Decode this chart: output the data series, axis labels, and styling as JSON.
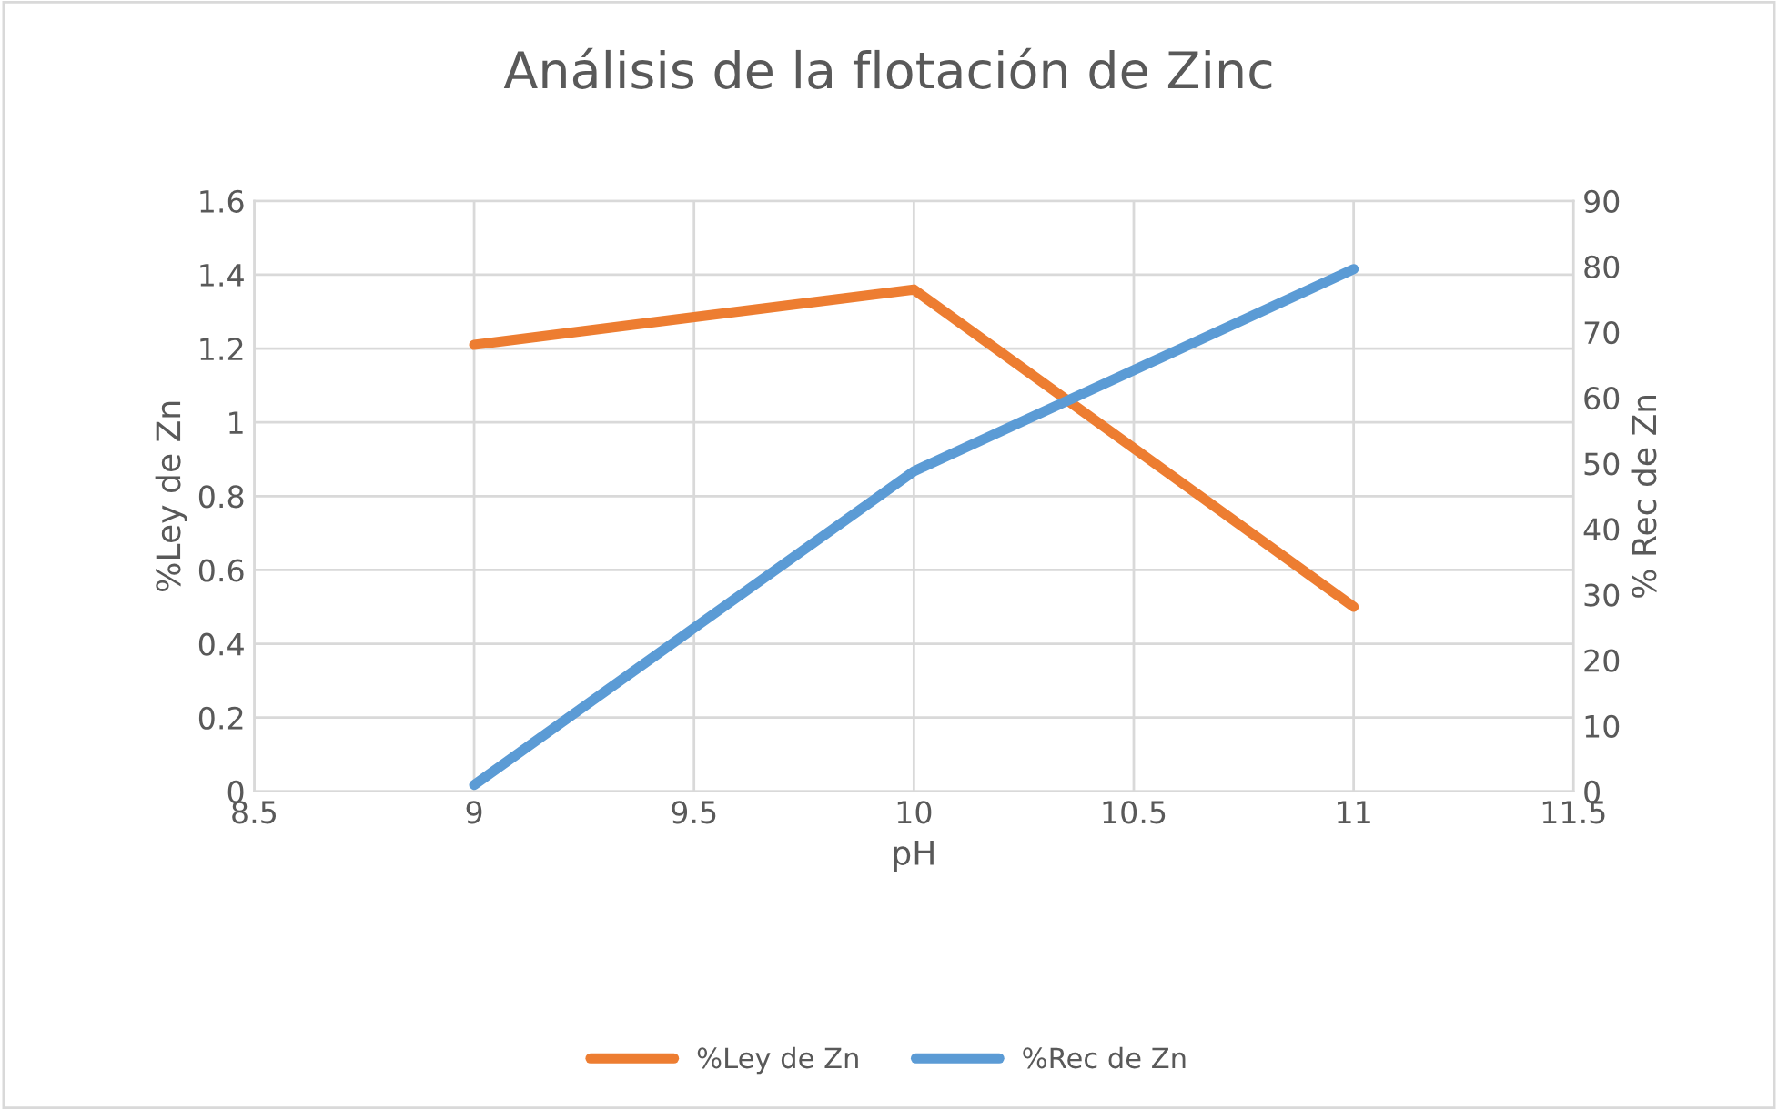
{
  "chart_data": {
    "type": "line",
    "title": "Análisis de la flotación de Zinc",
    "xlabel": "pH",
    "ylabel": "%Ley de Zn",
    "y2label": "% Rec de Zn",
    "x": [
      9,
      10,
      11
    ],
    "series": [
      {
        "name": "%Ley de Zn",
        "color": "#ed7d31",
        "values": [
          1.21,
          1.36,
          0.5
        ]
      },
      {
        "name": "%Rec de Zn",
        "color": "#5b9bd5",
        "values": [
          1,
          48.8,
          79.6
        ],
        "axis": "y2"
      }
    ],
    "xlim": [
      8.5,
      11.5
    ],
    "xticks": [
      8.5,
      9,
      9.5,
      10,
      10.5,
      11,
      11.5
    ],
    "ylim": [
      0,
      1.6
    ],
    "yticks": [
      0,
      0.2,
      0.4,
      0.6,
      0.8,
      1,
      1.2,
      1.4,
      1.6
    ],
    "y2lim": [
      0,
      90
    ],
    "y2ticks": [
      0,
      10,
      20,
      30,
      40,
      50,
      60,
      70,
      80,
      90
    ],
    "grid": true,
    "legend": "bottom",
    "marker": "none",
    "line_style": "solid"
  }
}
